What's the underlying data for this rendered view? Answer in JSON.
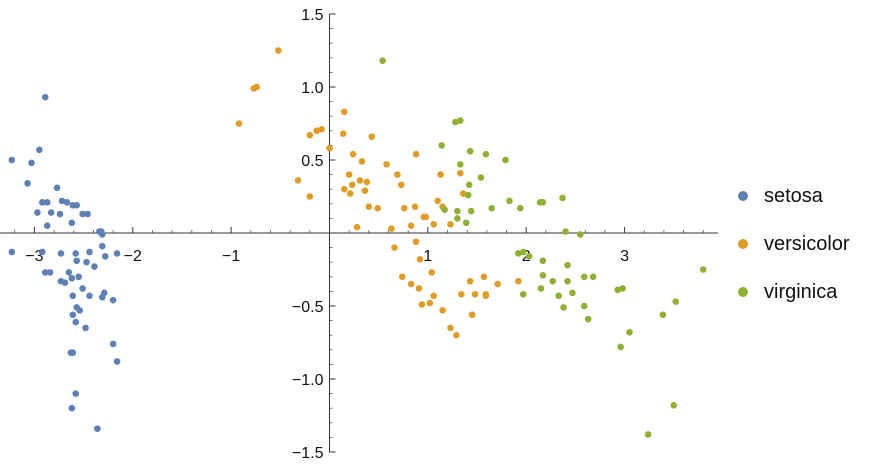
{
  "chart_data": {
    "type": "scatter",
    "title": "",
    "xlabel": "",
    "ylabel": "",
    "xlim": [
      -3.35,
      3.95
    ],
    "ylim": [
      -1.5,
      1.5
    ],
    "x_ticks": [
      -3,
      -2,
      -1,
      1,
      2,
      3
    ],
    "x_tick_labels": [
      "−3",
      "−2",
      "−1",
      "1",
      "2",
      "3"
    ],
    "y_ticks": [
      1.5,
      1.0,
      0.5,
      -0.5,
      -1.0,
      -1.5
    ],
    "y_tick_labels": [
      "1.5",
      "1.0",
      "0.5",
      "−0.5",
      "−1.0",
      "−1.5"
    ],
    "grid": false,
    "legend_position": "right",
    "series": [
      {
        "name": "setosa",
        "color": "#5E81B5",
        "points": [
          [
            -3.23,
            0.5
          ],
          [
            -3.23,
            -0.13
          ],
          [
            -2.89,
            0.93
          ],
          [
            -2.95,
            0.57
          ],
          [
            -3.03,
            0.48
          ],
          [
            -3.07,
            0.34
          ],
          [
            -2.97,
            0.14
          ],
          [
            -2.83,
            0.14
          ],
          [
            -2.92,
            0.21
          ],
          [
            -2.87,
            0.21
          ],
          [
            -2.77,
            0.31
          ],
          [
            -2.72,
            0.22
          ],
          [
            -2.67,
            0.21
          ],
          [
            -2.61,
            0.19
          ],
          [
            -2.57,
            0.19
          ],
          [
            -2.87,
            0.05
          ],
          [
            -2.74,
            0.13
          ],
          [
            -2.62,
            0.07
          ],
          [
            -2.51,
            0.13
          ],
          [
            -2.46,
            0.13
          ],
          [
            -2.34,
            0.01
          ],
          [
            -2.32,
            0.01
          ],
          [
            -2.31,
            -0.01
          ],
          [
            -2.31,
            -0.09
          ],
          [
            -2.16,
            -0.14
          ],
          [
            -2.28,
            -0.16
          ],
          [
            -2.44,
            -0.13
          ],
          [
            -2.58,
            -0.14
          ],
          [
            -2.73,
            -0.14
          ],
          [
            -2.92,
            -0.13
          ],
          [
            -2.57,
            -0.19
          ],
          [
            -2.89,
            -0.27
          ],
          [
            -2.84,
            -0.27
          ],
          [
            -2.65,
            -0.27
          ],
          [
            -2.47,
            -0.2
          ],
          [
            -2.39,
            -0.23
          ],
          [
            -2.55,
            -0.3
          ],
          [
            -2.62,
            -0.31
          ],
          [
            -2.73,
            -0.33
          ],
          [
            -2.69,
            -0.34
          ],
          [
            -2.51,
            -0.38
          ],
          [
            -2.61,
            -0.43
          ],
          [
            -2.57,
            -0.51
          ],
          [
            -2.44,
            -0.43
          ],
          [
            -2.29,
            -0.41
          ],
          [
            -2.31,
            -0.44
          ],
          [
            -2.54,
            -0.53
          ],
          [
            -2.2,
            -0.46
          ],
          [
            -2.61,
            -0.56
          ],
          [
            -2.58,
            -0.61
          ],
          [
            -2.48,
            -0.65
          ],
          [
            -2.2,
            -0.76
          ],
          [
            -2.63,
            -0.82
          ],
          [
            -2.61,
            -0.82
          ],
          [
            -2.16,
            -0.88
          ],
          [
            -2.58,
            -1.1
          ],
          [
            -2.62,
            -1.2
          ],
          [
            -2.36,
            -1.34
          ]
        ]
      },
      {
        "name": "versicolor",
        "color": "#E19C24",
        "points": [
          [
            -0.52,
            1.25
          ],
          [
            -0.74,
            1.0
          ],
          [
            -0.77,
            0.99
          ],
          [
            -0.92,
            0.75
          ],
          [
            -0.08,
            0.71
          ],
          [
            -0.13,
            0.7
          ],
          [
            -0.2,
            0.67
          ],
          [
            0.14,
            0.68
          ],
          [
            0.15,
            0.83
          ],
          [
            0.0,
            0.58
          ],
          [
            0.43,
            0.66
          ],
          [
            -0.32,
            0.36
          ],
          [
            -0.2,
            0.25
          ],
          [
            0.24,
            0.54
          ],
          [
            0.33,
            0.49
          ],
          [
            0.58,
            0.47
          ],
          [
            0.88,
            0.54
          ],
          [
            0.2,
            0.4
          ],
          [
            0.23,
            0.33
          ],
          [
            0.31,
            0.36
          ],
          [
            0.38,
            0.35
          ],
          [
            0.69,
            0.4
          ],
          [
            0.73,
            0.33
          ],
          [
            0.15,
            0.3
          ],
          [
            0.36,
            0.29
          ],
          [
            0.4,
            0.18
          ],
          [
            0.87,
            0.18
          ],
          [
            0.98,
            0.11
          ],
          [
            1.15,
            0.18
          ],
          [
            1.1,
            0.22
          ],
          [
            0.96,
            0.11
          ],
          [
            1.36,
            0.27
          ],
          [
            1.33,
            0.41
          ],
          [
            0.21,
            0.27
          ],
          [
            0.49,
            0.17
          ],
          [
            0.76,
            0.17
          ],
          [
            0.83,
            0.05
          ],
          [
            0.28,
            0.04
          ],
          [
            0.63,
            0.03
          ],
          [
            1.23,
            0.06
          ],
          [
            1.06,
            0.06
          ],
          [
            1.13,
            0.4
          ],
          [
            0.66,
            -0.1
          ],
          [
            0.88,
            -0.06
          ],
          [
            0.92,
            -0.18
          ],
          [
            0.74,
            -0.3
          ],
          [
            0.83,
            -0.35
          ],
          [
            1.04,
            -0.27
          ],
          [
            1.02,
            -0.48
          ],
          [
            0.91,
            -0.38
          ],
          [
            1.06,
            -0.43
          ],
          [
            1.34,
            -0.42
          ],
          [
            1.59,
            -0.43
          ],
          [
            1.23,
            -0.65
          ],
          [
            0.94,
            -0.49
          ],
          [
            1.15,
            -0.53
          ],
          [
            1.45,
            -0.56
          ],
          [
            1.29,
            -0.7
          ],
          [
            1.43,
            -0.33
          ],
          [
            1.57,
            -0.3
          ],
          [
            1.71,
            -0.35
          ],
          [
            1.48,
            -0.42
          ],
          [
            1.92,
            -0.33
          ],
          [
            1.59,
            -0.42
          ]
        ]
      },
      {
        "name": "virginica",
        "color": "#8FB131",
        "points": [
          [
            0.54,
            1.18
          ],
          [
            1.28,
            0.76
          ],
          [
            1.33,
            0.77
          ],
          [
            1.14,
            0.6
          ],
          [
            1.43,
            0.56
          ],
          [
            1.59,
            0.54
          ],
          [
            1.79,
            0.5
          ],
          [
            1.33,
            0.47
          ],
          [
            1.42,
            0.33
          ],
          [
            1.54,
            0.38
          ],
          [
            1.41,
            0.26
          ],
          [
            1.17,
            0.16
          ],
          [
            1.3,
            0.15
          ],
          [
            1.44,
            0.15
          ],
          [
            1.3,
            0.1
          ],
          [
            1.39,
            0.07
          ],
          [
            1.65,
            0.17
          ],
          [
            1.83,
            0.22
          ],
          [
            1.94,
            0.17
          ],
          [
            2.14,
            0.21
          ],
          [
            2.17,
            0.21
          ],
          [
            2.37,
            0.24
          ],
          [
            2.4,
            0.01
          ],
          [
            2.55,
            -0.01
          ],
          [
            1.92,
            -0.14
          ],
          [
            1.97,
            -0.13
          ],
          [
            2.03,
            -0.16
          ],
          [
            2.17,
            -0.19
          ],
          [
            2.42,
            -0.22
          ],
          [
            2.17,
            -0.29
          ],
          [
            2.27,
            -0.33
          ],
          [
            2.42,
            -0.33
          ],
          [
            2.59,
            -0.3
          ],
          [
            2.68,
            -0.3
          ],
          [
            2.47,
            -0.41
          ],
          [
            2.33,
            -0.43
          ],
          [
            2.15,
            -0.38
          ],
          [
            1.97,
            -0.42
          ],
          [
            2.38,
            -0.51
          ],
          [
            2.59,
            -0.5
          ],
          [
            2.63,
            -0.59
          ],
          [
            2.98,
            -0.38
          ],
          [
            2.93,
            -0.39
          ],
          [
            3.05,
            -0.68
          ],
          [
            2.96,
            -0.78
          ],
          [
            3.39,
            -0.56
          ],
          [
            3.52,
            -0.47
          ],
          [
            3.8,
            -0.25
          ],
          [
            3.5,
            -1.18
          ],
          [
            3.24,
            -1.38
          ]
        ]
      }
    ]
  }
}
